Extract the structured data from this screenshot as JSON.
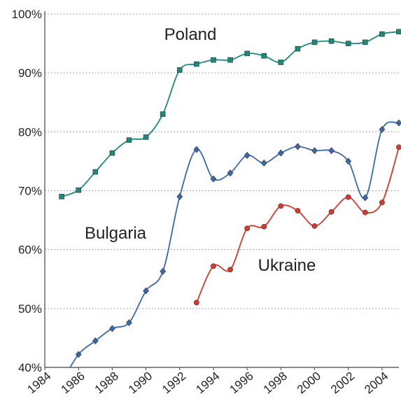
{
  "chart_data": {
    "type": "line",
    "x": [
      1985,
      1986,
      1987,
      1988,
      1989,
      1990,
      1991,
      1992,
      1993,
      1994,
      1995,
      1996,
      1997,
      1998,
      1999,
      2000,
      2001,
      2002,
      2003,
      2004,
      2005
    ],
    "series": [
      {
        "name": "Poland",
        "color": "#1b8a7c",
        "marker": "square",
        "values": [
          69.0,
          70.1,
          73.2,
          76.4,
          78.6,
          79.1,
          83.0,
          90.5,
          91.5,
          92.2,
          92.2,
          93.3,
          92.9,
          91.8,
          94.1,
          95.2,
          95.4,
          95.0,
          95.2,
          96.6,
          97.0
        ]
      },
      {
        "name": "Bulgaria",
        "color": "#3b68ad",
        "marker": "diamond",
        "values": [
          37.5,
          42.2,
          44.5,
          46.6,
          47.6,
          53.0,
          56.3,
          69.0,
          77.0,
          72.0,
          73.0,
          76.0,
          74.7,
          76.4,
          77.5,
          76.8,
          76.8,
          75.0,
          68.8,
          80.4,
          81.5
        ]
      },
      {
        "name": "Ukraine",
        "color": "#d8392b",
        "marker": "circle",
        "values": [
          null,
          null,
          null,
          null,
          null,
          null,
          null,
          null,
          51.0,
          57.2,
          56.6,
          63.6,
          63.9,
          67.4,
          66.6,
          64.0,
          66.4,
          68.9,
          66.3,
          68.0,
          77.4
        ]
      }
    ],
    "xlim": [
      1984,
      2005
    ],
    "xticks": [
      1984,
      1986,
      1988,
      1990,
      1992,
      1994,
      1996,
      1998,
      2000,
      2002,
      2004
    ],
    "ylim": [
      40,
      100
    ],
    "yticks": [
      {
        "value": 40,
        "label": "40%"
      },
      {
        "value": 50,
        "label": "50%"
      },
      {
        "value": 60,
        "label": "60%"
      },
      {
        "value": 70,
        "label": "70%"
      },
      {
        "value": 80,
        "label": "80%"
      },
      {
        "value": 90,
        "label": "90%"
      },
      {
        "value": 100,
        "label": "100%"
      }
    ],
    "grid": true
  }
}
